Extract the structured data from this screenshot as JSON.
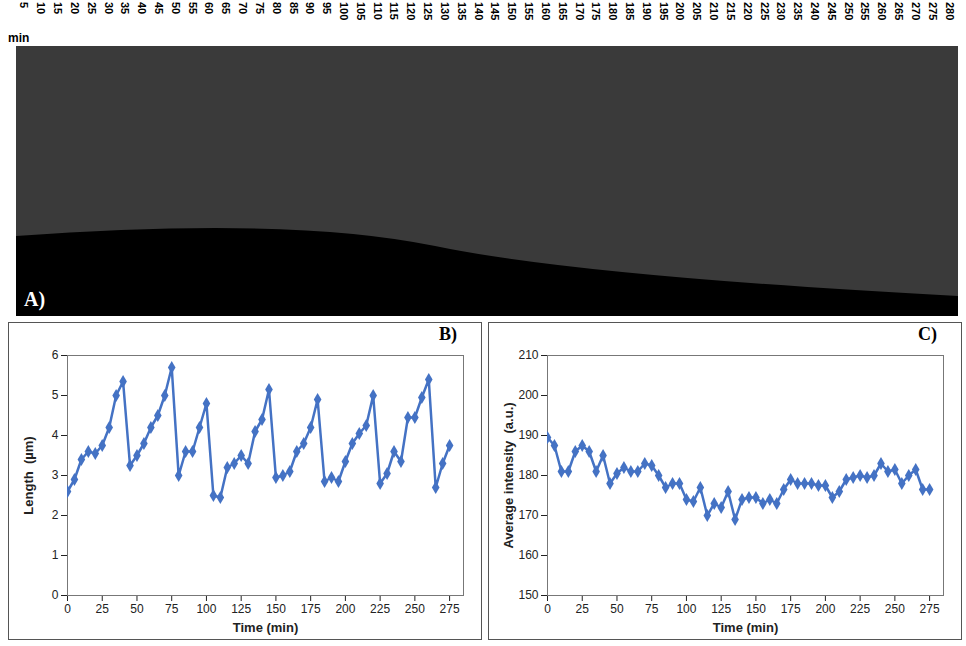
{
  "chart_data": [
    {
      "type": "image",
      "label": "A)",
      "x_unit": "min",
      "x": [
        5,
        10,
        15,
        20,
        25,
        30,
        35,
        40,
        45,
        50,
        55,
        60,
        65,
        70,
        75,
        80,
        85,
        90,
        95,
        100,
        105,
        110,
        115,
        120,
        125,
        130,
        135,
        140,
        145,
        150,
        155,
        160,
        165,
        170,
        175,
        180,
        185,
        190,
        195,
        200,
        205,
        210,
        215,
        220,
        225,
        230,
        235,
        240,
        245,
        250,
        255,
        260,
        265,
        270,
        275,
        280
      ]
    },
    {
      "type": "line",
      "label": "B)",
      "x_label": "Time (min)",
      "y_label": "Length  (µm)",
      "color": "#4472c4",
      "marker": "diamond",
      "grid": false,
      "xlim": [
        0,
        285
      ],
      "ylim": [
        0,
        6
      ],
      "xticks": [
        0,
        25,
        50,
        75,
        100,
        125,
        150,
        175,
        200,
        225,
        250,
        275
      ],
      "yticks": [
        0,
        1,
        2,
        3,
        4,
        5,
        6
      ],
      "x": [
        0,
        5,
        10,
        15,
        20,
        25,
        30,
        35,
        40,
        45,
        50,
        55,
        60,
        65,
        70,
        75,
        80,
        85,
        90,
        95,
        100,
        105,
        110,
        115,
        120,
        125,
        130,
        135,
        140,
        145,
        150,
        155,
        160,
        165,
        170,
        175,
        180,
        185,
        190,
        195,
        200,
        205,
        210,
        215,
        220,
        225,
        230,
        235,
        240,
        245,
        250,
        255,
        260,
        265,
        270,
        275
      ],
      "values": [
        2.6,
        2.9,
        3.4,
        3.6,
        3.55,
        3.75,
        4.2,
        5.0,
        5.35,
        3.25,
        3.5,
        3.8,
        4.2,
        4.5,
        5.0,
        5.7,
        3.0,
        3.6,
        3.6,
        4.2,
        4.8,
        2.5,
        2.45,
        3.2,
        3.3,
        3.5,
        3.3,
        4.1,
        4.4,
        5.15,
        2.95,
        3.0,
        3.1,
        3.6,
        3.8,
        4.2,
        4.9,
        2.85,
        2.95,
        2.85,
        3.35,
        3.8,
        4.05,
        4.25,
        5.0,
        2.8,
        3.05,
        3.6,
        3.35,
        4.45,
        4.45,
        4.95,
        5.4,
        2.7,
        3.3,
        3.75
      ]
    },
    {
      "type": "line",
      "label": "C)",
      "x_label": "Time (min)",
      "y_label": "Average intensity  (a.u.)",
      "color": "#4472c4",
      "marker": "diamond",
      "grid": false,
      "xlim": [
        0,
        285
      ],
      "ylim": [
        150,
        210
      ],
      "xticks": [
        0,
        25,
        50,
        75,
        100,
        125,
        150,
        175,
        200,
        225,
        250,
        275
      ],
      "yticks": [
        150,
        160,
        170,
        180,
        190,
        200,
        210
      ],
      "x": [
        0,
        5,
        10,
        15,
        20,
        25,
        30,
        35,
        40,
        45,
        50,
        55,
        60,
        65,
        70,
        75,
        80,
        85,
        90,
        95,
        100,
        105,
        110,
        115,
        120,
        125,
        130,
        135,
        140,
        145,
        150,
        155,
        160,
        165,
        170,
        175,
        180,
        185,
        190,
        195,
        200,
        205,
        210,
        215,
        220,
        225,
        230,
        235,
        240,
        245,
        250,
        255,
        260,
        265,
        270,
        275
      ],
      "values": [
        189.5,
        187.5,
        181,
        181,
        186,
        187.5,
        186,
        181,
        185,
        178,
        180.5,
        182,
        181,
        181,
        183,
        182.5,
        180,
        177,
        178,
        178,
        174,
        173.5,
        177,
        170,
        173,
        172,
        176,
        169,
        174,
        174.5,
        174.5,
        173,
        174,
        173,
        176.5,
        179,
        178,
        178,
        178,
        177.5,
        177.5,
        174.5,
        176,
        179,
        179.5,
        180,
        179.5,
        180,
        183,
        181,
        181.5,
        178,
        180,
        181.5,
        176.5,
        176.5
      ]
    }
  ]
}
